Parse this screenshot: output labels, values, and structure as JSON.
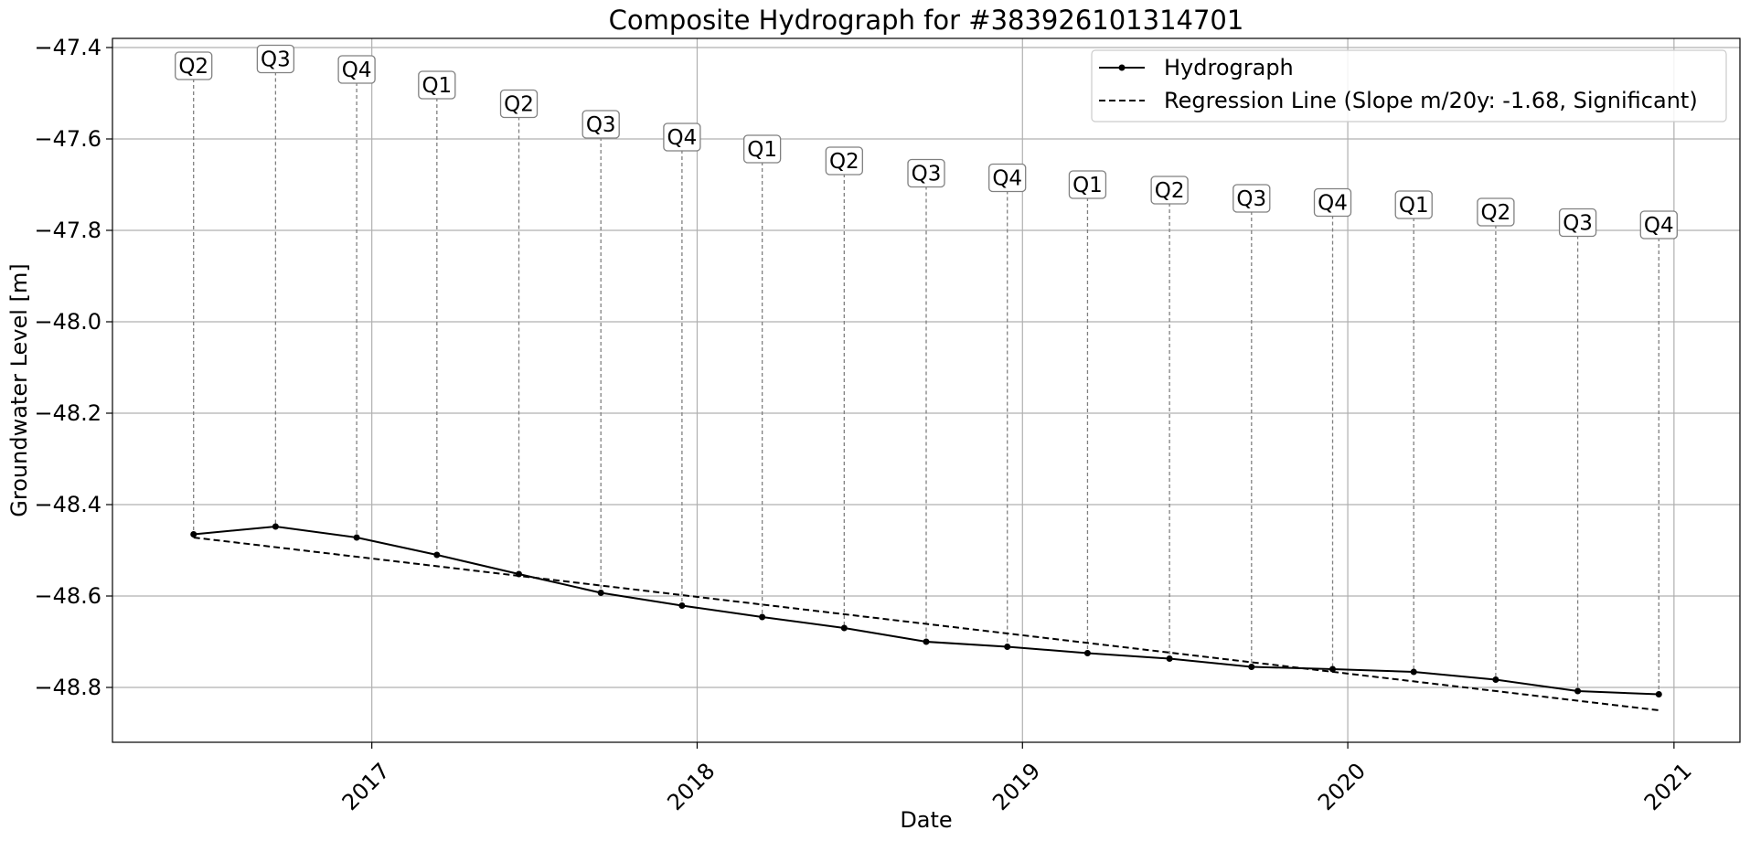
{
  "chart_data": {
    "type": "line",
    "title": "Composite Hydrograph for  #383926101314701",
    "xlabel": "Date",
    "ylabel": "Groundwater Level [m]",
    "x_tick_labels": [
      "2017",
      "2018",
      "2019",
      "2020",
      "2021"
    ],
    "y_tick_labels": [
      "−47.4",
      "−47.6",
      "−47.8",
      "−48.0",
      "−48.2",
      "−48.4",
      "−48.6",
      "−48.8"
    ],
    "y_ticks": [
      -47.4,
      -47.6,
      -47.8,
      -48.0,
      -48.2,
      -48.4,
      -48.6,
      -48.8
    ],
    "ylim": [
      -48.92,
      -47.38
    ],
    "xlim": [
      "2016-03-16",
      "2021-03-16"
    ],
    "grid": true,
    "legend_position": "upper right",
    "series": [
      {
        "name": "Hydrograph",
        "style": "solid line with point markers",
        "color": "#000000",
        "x": [
          "2016-06-15",
          "2016-09-15",
          "2016-12-15",
          "2017-03-15",
          "2017-06-15",
          "2017-09-15",
          "2017-12-15",
          "2018-03-15",
          "2018-06-15",
          "2018-09-15",
          "2018-12-15",
          "2019-03-15",
          "2019-06-15",
          "2019-09-15",
          "2019-12-15",
          "2020-03-15",
          "2020-06-15",
          "2020-09-15",
          "2020-12-15"
        ],
        "values": [
          -48.465,
          -48.448,
          -48.472,
          -48.51,
          -48.552,
          -48.593,
          -48.621,
          -48.646,
          -48.67,
          -48.7,
          -48.711,
          -48.725,
          -48.737,
          -48.755,
          -48.76,
          -48.766,
          -48.783,
          -48.808,
          -48.815
        ]
      },
      {
        "name": "Regression Line (Slope m/20y: -1.68, Significant)",
        "style": "dashed line",
        "color": "#000000",
        "x": [
          "2016-06-15",
          "2020-12-15"
        ],
        "values": [
          -48.472,
          -48.85
        ]
      }
    ],
    "annotations": {
      "style": "boxed quarter labels connected to data points by grey dashed lines",
      "labels": [
        "Q2",
        "Q3",
        "Q4",
        "Q1",
        "Q2",
        "Q3",
        "Q4",
        "Q1",
        "Q2",
        "Q3",
        "Q4",
        "Q1",
        "Q2",
        "Q3",
        "Q4",
        "Q1",
        "Q2",
        "Q3",
        "Q4"
      ],
      "label_levels": [
        -47.44,
        -47.425,
        -47.448,
        -47.482,
        -47.523,
        -47.568,
        -47.596,
        -47.622,
        -47.648,
        -47.675,
        -47.685,
        -47.7,
        -47.712,
        -47.73,
        -47.739,
        -47.744,
        -47.76,
        -47.783,
        -47.788
      ]
    }
  }
}
